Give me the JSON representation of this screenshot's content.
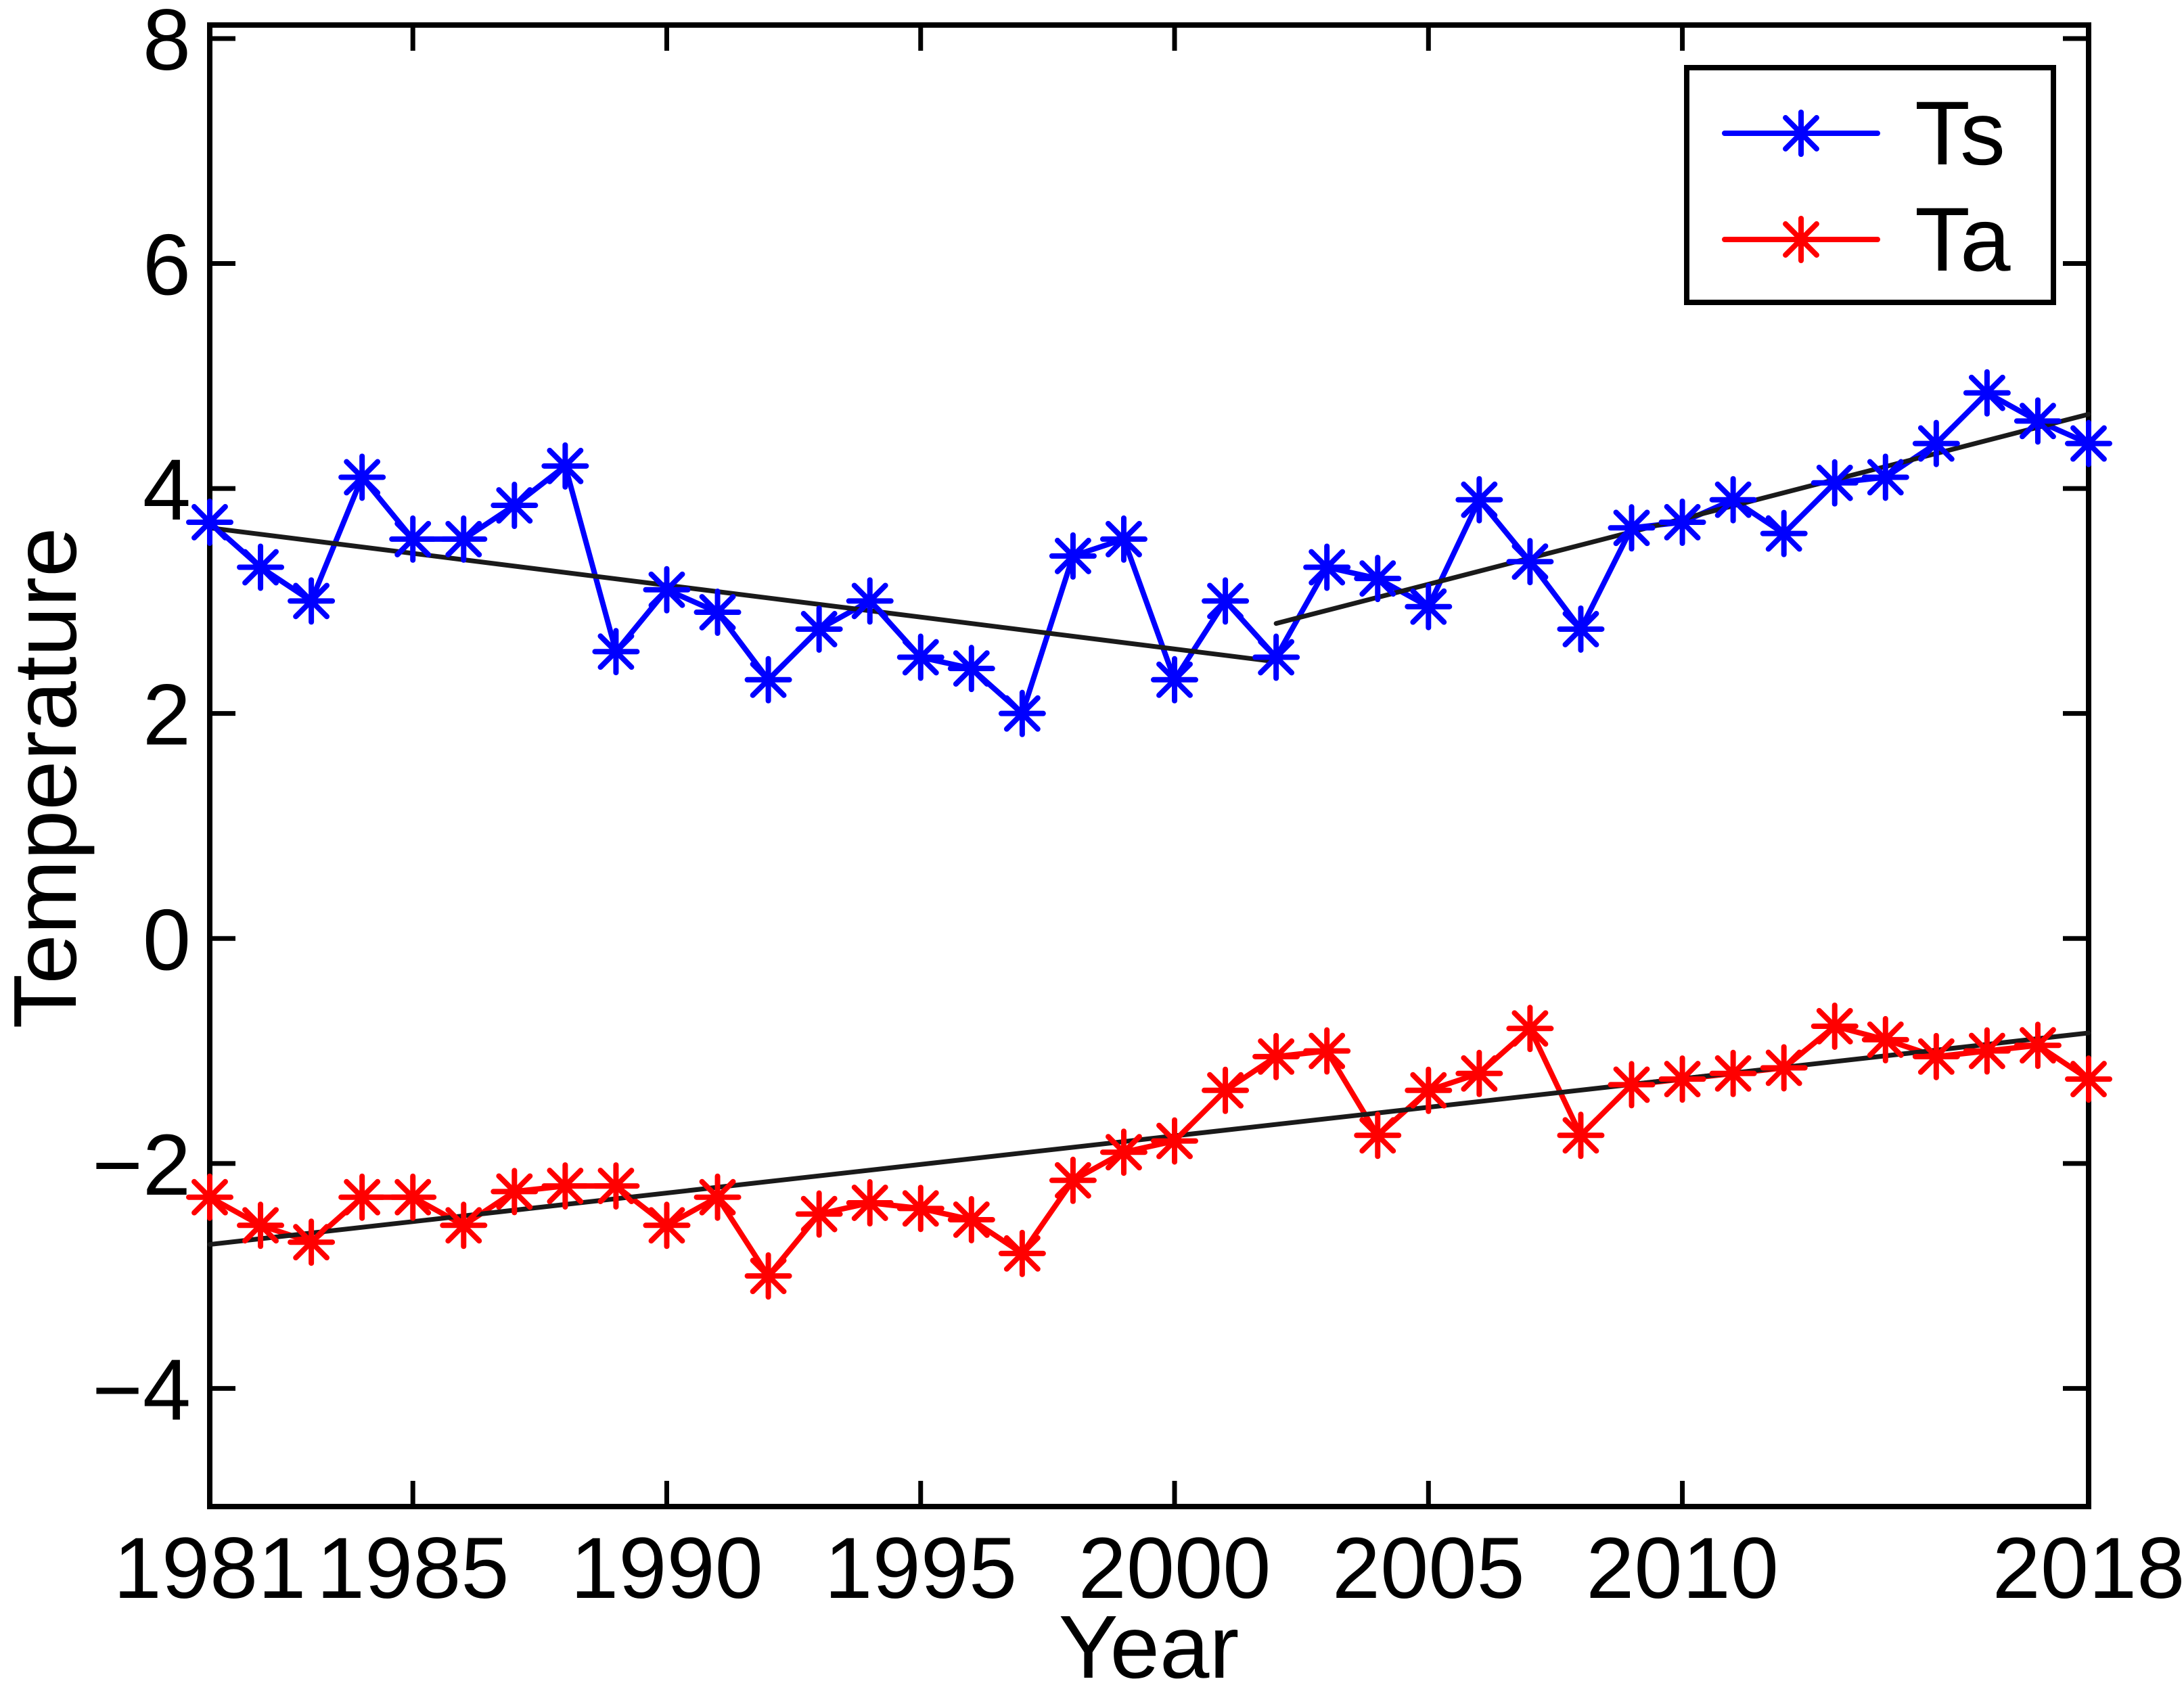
{
  "figure": {
    "background": "#ffffff",
    "frame_color": "#000000",
    "trend_color": "#1a1a1a"
  },
  "chart_data": {
    "type": "line",
    "title": "",
    "xlabel": "Year",
    "ylabel": "Temperature",
    "xlim": [
      1981,
      2018
    ],
    "ylim": [
      -5.05,
      8.12
    ],
    "grid": false,
    "legend_position": "top-right",
    "x_ticks": [
      1981,
      1985,
      1990,
      1995,
      2000,
      2005,
      2010,
      2018
    ],
    "x_tick_labels": [
      "1981",
      "1985",
      "1990",
      "1995",
      "2000",
      "2005",
      "2010",
      "2018"
    ],
    "y_ticks": [
      8,
      6,
      4,
      2,
      0,
      -2,
      -4
    ],
    "y_tick_labels": [
      "8",
      "6",
      "4",
      "2",
      "0",
      "−2",
      "−4"
    ],
    "x": [
      1981,
      1982,
      1983,
      1984,
      1985,
      1986,
      1987,
      1988,
      1989,
      1990,
      1991,
      1992,
      1993,
      1994,
      1995,
      1996,
      1997,
      1998,
      1999,
      2000,
      2001,
      2002,
      2003,
      2004,
      2005,
      2006,
      2007,
      2008,
      2009,
      2010,
      2011,
      2012,
      2013,
      2014,
      2015,
      2016,
      2017,
      2018
    ],
    "series": [
      {
        "name": "Ts",
        "color": "#0000ff",
        "marker": "asterisk",
        "values": [
          3.7,
          3.3,
          3.0,
          4.1,
          3.55,
          3.55,
          3.85,
          4.2,
          2.55,
          3.1,
          2.9,
          2.3,
          2.75,
          3.0,
          2.5,
          2.4,
          2.0,
          3.4,
          3.55,
          2.3,
          3.0,
          2.5,
          3.3,
          3.2,
          2.95,
          3.9,
          3.35,
          2.75,
          3.65,
          3.7,
          3.9,
          3.6,
          4.05,
          4.1,
          4.4,
          4.85,
          4.6,
          4.4
        ]
      },
      {
        "name": "Ta",
        "color": "#ff0000",
        "marker": "asterisk",
        "values": [
          -2.3,
          -2.55,
          -2.7,
          -2.3,
          -2.3,
          -2.55,
          -2.25,
          -2.2,
          -2.2,
          -2.55,
          -2.3,
          -3.0,
          -2.45,
          -2.35,
          -2.4,
          -2.5,
          -2.8,
          -2.15,
          -1.9,
          -1.8,
          -1.35,
          -1.05,
          -1.0,
          -1.75,
          -1.35,
          -1.2,
          -0.8,
          -1.75,
          -1.3,
          -1.25,
          -1.2,
          -1.15,
          -0.78,
          -0.9,
          -1.05,
          -1.0,
          -0.95,
          -1.25
        ]
      }
    ],
    "trend_lines": [
      {
        "name": "ts-trend-early",
        "series": "Ts",
        "points": [
          [
            1981,
            3.65
          ],
          [
            2002,
            2.46
          ]
        ]
      },
      {
        "name": "ts-trend-late",
        "series": "Ts",
        "points": [
          [
            2002,
            2.8
          ],
          [
            2018,
            4.66
          ]
        ]
      },
      {
        "name": "ta-trend",
        "series": "Ta",
        "points": [
          [
            1981,
            -2.72
          ],
          [
            2018,
            -0.84
          ]
        ]
      }
    ],
    "legend": [
      {
        "label": "Ts",
        "color": "#0000ff"
      },
      {
        "label": "Ta",
        "color": "#ff0000"
      }
    ]
  }
}
